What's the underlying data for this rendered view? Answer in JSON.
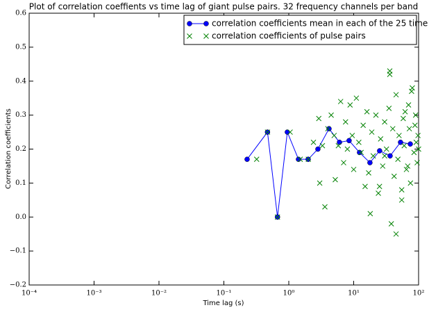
{
  "chart_data": {
    "type": "line_scatter",
    "title": "Plot of correlation coeffients vs time lag of giant pulse pairs. 32 frequency channels per band",
    "xlabel": "Time lag (s)",
    "ylabel": "Correlation coefficients",
    "xscale": "log",
    "xlim": [
      0.0001,
      100
    ],
    "xticks": [
      {
        "value": 0.0001,
        "label": "10⁻⁴"
      },
      {
        "value": 0.001,
        "label": "10⁻³"
      },
      {
        "value": 0.01,
        "label": "10⁻²"
      },
      {
        "value": 0.1,
        "label": "10⁻¹"
      },
      {
        "value": 1,
        "label": "10⁰"
      },
      {
        "value": 10,
        "label": "10¹"
      },
      {
        "value": 100,
        "label": "10²"
      }
    ],
    "ylim": [
      -0.2,
      0.6
    ],
    "yticks": [
      {
        "value": -0.2,
        "label": "−0.2"
      },
      {
        "value": -0.1,
        "label": "−0.1"
      },
      {
        "value": 0,
        "label": "0.0"
      },
      0.1,
      0.2,
      0.3,
      0.4,
      0.5,
      0.6
    ],
    "legend": "upper right",
    "series": [
      {
        "name": "correlation coefficients mean in each of the 25 time bin",
        "color": "#0000ff",
        "marker": "o",
        "line": true,
        "x": [
          0.228,
          0.47,
          0.67,
          0.95,
          1.41,
          1.99,
          2.81,
          4.17,
          6.04,
          8.5,
          12.3,
          17.8,
          25.1,
          36.4,
          52.7,
          74.5
        ],
        "values": [
          0.17,
          0.25,
          0.0,
          0.25,
          0.17,
          0.17,
          0.2,
          0.26,
          0.22,
          0.225,
          0.19,
          0.16,
          0.195,
          0.18,
          0.22,
          0.215
        ]
      },
      {
        "name": "correlation coefficients of pulse pairs",
        "color": "#008000",
        "marker": "x",
        "line": false,
        "x": [
          0.32,
          0.67,
          0.47,
          1.05,
          1.5,
          2.0,
          2.4,
          2.9,
          3.0,
          3.3,
          3.6,
          4.0,
          4.5,
          5.0,
          5.2,
          5.8,
          6.3,
          7.0,
          7.5,
          8.0,
          8.8,
          9.5,
          10,
          11,
          12,
          13,
          14,
          15,
          16,
          17,
          18,
          19,
          20,
          22,
          24,
          26,
          28,
          30,
          32,
          35,
          38,
          40,
          42,
          45,
          48,
          50,
          55,
          58,
          60,
          65,
          70,
          72,
          75,
          80,
          85,
          88,
          90,
          95,
          98,
          100,
          36,
          36,
          45,
          62,
          78,
          92,
          55,
          68,
          30,
          25
        ],
        "values": [
          0.17,
          0.0,
          0.25,
          0.25,
          0.17,
          0.17,
          0.22,
          0.29,
          0.1,
          0.21,
          0.03,
          0.26,
          0.3,
          0.24,
          0.11,
          0.21,
          0.34,
          0.16,
          0.28,
          0.2,
          0.33,
          0.24,
          0.14,
          0.35,
          0.22,
          0.19,
          0.27,
          0.09,
          0.31,
          0.13,
          0.01,
          0.25,
          0.18,
          0.3,
          0.07,
          0.23,
          0.15,
          0.28,
          0.2,
          0.32,
          -0.02,
          0.26,
          0.12,
          0.36,
          0.17,
          0.24,
          0.05,
          0.29,
          0.21,
          0.14,
          0.33,
          0.26,
          0.1,
          0.38,
          0.19,
          0.27,
          0.3,
          0.16,
          0.24,
          0.2,
          0.43,
          0.42,
          -0.05,
          0.31,
          0.37,
          0.22,
          0.08,
          0.15,
          0.18,
          0.09
        ]
      }
    ]
  }
}
